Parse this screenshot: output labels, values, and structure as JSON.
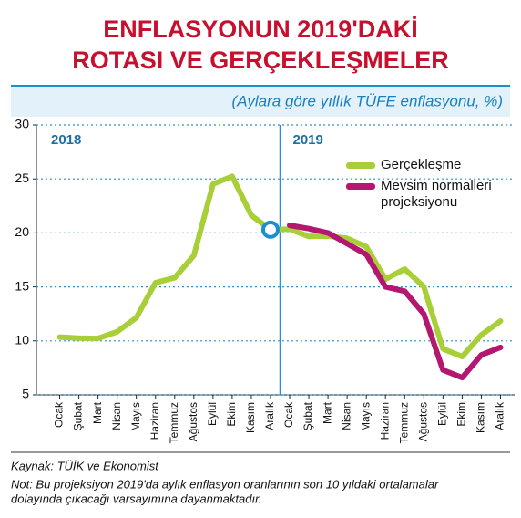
{
  "chart_data": {
    "type": "line",
    "title_lines": [
      "ENFLASYONUN 2019'DAKİ",
      "ROTASI VE GERÇEKLEŞMELER"
    ],
    "subtitle": "(Aylara göre yıllık TÜFE enflasyonu, %)",
    "year_labels": [
      "2018",
      "2019"
    ],
    "categories": [
      "Ocak",
      "Şubat",
      "Mart",
      "Nisan",
      "Mayıs",
      "Haziran",
      "Temmuz",
      "Ağustos",
      "Eylül",
      "Ekim",
      "Kasım",
      "Aralık",
      "Ocak",
      "Şubat",
      "Mart",
      "Nisan",
      "Mayıs",
      "Haziran",
      "Temmuz",
      "Ağustos",
      "Eylül",
      "Ekim",
      "Kasım",
      "Aralık"
    ],
    "series": [
      {
        "name": "Gerçekleşme",
        "color": "#a8cf38",
        "values": [
          10.35,
          10.26,
          10.23,
          10.85,
          12.15,
          15.39,
          15.85,
          17.9,
          24.52,
          25.24,
          21.62,
          20.3,
          20.35,
          19.67,
          19.71,
          19.5,
          18.71,
          15.72,
          16.65,
          15.01,
          9.26,
          8.55,
          10.56,
          11.84
        ]
      },
      {
        "name": "Mevsim normalleri projeksiyonu",
        "color": "#b3176f",
        "values": [
          null,
          null,
          null,
          null,
          null,
          null,
          null,
          null,
          null,
          null,
          null,
          null,
          20.7,
          20.4,
          20.0,
          19.0,
          18.0,
          15.0,
          14.6,
          12.5,
          7.3,
          6.6,
          8.7,
          9.4
        ]
      }
    ],
    "ylim": [
      5,
      30
    ],
    "yticks": [
      5,
      10,
      15,
      20,
      25,
      30
    ],
    "grid": true,
    "source": "Kaynak: TÜİK ve Ekonomist",
    "note_lines": [
      "Not: Bu projeksiyon 2019'da aylık enflasyon oranlarının son 10 yıldaki ortalamalar",
      "dolayında çıkacağı varsayımına dayanmaktadır."
    ]
  }
}
